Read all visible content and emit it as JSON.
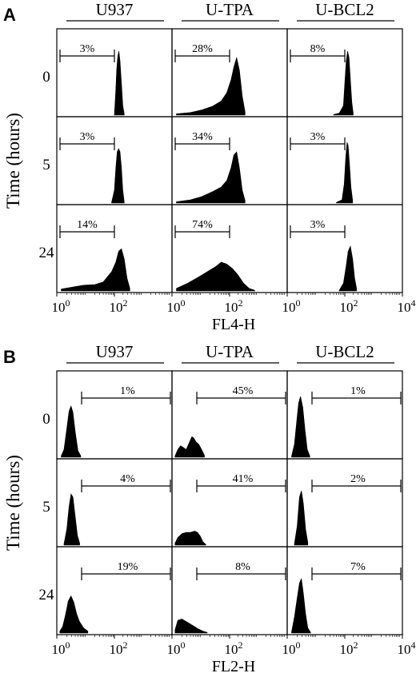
{
  "figure": {
    "panels": [
      {
        "letter": "A",
        "xlabel": "FL4-H",
        "ylabel": "Time (hours)",
        "columns": [
          "U937",
          "U-TPA",
          "U-BCL2"
        ],
        "rows": [
          "0",
          "5",
          "24"
        ],
        "tick_exponents": [
          "0",
          "2",
          "0",
          "2",
          "0",
          "2",
          "4"
        ],
        "gate": "left",
        "cells": [
          [
            {
              "pct": "3%",
              "hist": [
                [
                  2.0,
                  0
                ],
                [
                  2.05,
                  0.4
                ],
                [
                  2.08,
                  0.7
                ],
                [
                  2.12,
                  0.92
                ],
                [
                  2.16,
                  1.0
                ],
                [
                  2.2,
                  0.85
                ],
                [
                  2.25,
                  0.5
                ],
                [
                  2.3,
                  0.15
                ],
                [
                  2.35,
                  0.02
                ]
              ]
            },
            {
              "pct": "28%",
              "hist": [
                [
                  0.1,
                  0.02
                ],
                [
                  0.6,
                  0.04
                ],
                [
                  1.0,
                  0.08
                ],
                [
                  1.4,
                  0.14
                ],
                [
                  1.7,
                  0.22
                ],
                [
                  1.9,
                  0.35
                ],
                [
                  2.05,
                  0.55
                ],
                [
                  2.15,
                  0.75
                ],
                [
                  2.25,
                  0.9
                ],
                [
                  2.35,
                  0.7
                ],
                [
                  2.45,
                  0.3
                ],
                [
                  2.55,
                  0.05
                ]
              ]
            },
            {
              "pct": "8%",
              "hist": [
                [
                  1.6,
                  0.01
                ],
                [
                  1.8,
                  0.03
                ],
                [
                  1.95,
                  0.15
                ],
                [
                  2.0,
                  0.5
                ],
                [
                  2.05,
                  0.85
                ],
                [
                  2.1,
                  1.0
                ],
                [
                  2.15,
                  0.9
                ],
                [
                  2.2,
                  0.55
                ],
                [
                  2.25,
                  0.2
                ],
                [
                  2.3,
                  0.03
                ]
              ]
            }
          ],
          [
            {
              "pct": "3%",
              "hist": [
                [
                  1.9,
                  0.01
                ],
                [
                  2.0,
                  0.2
                ],
                [
                  2.05,
                  0.55
                ],
                [
                  2.1,
                  0.8
                ],
                [
                  2.15,
                  0.85
                ],
                [
                  2.2,
                  0.8
                ],
                [
                  2.25,
                  0.55
                ],
                [
                  2.3,
                  0.2
                ],
                [
                  2.35,
                  0.02
                ]
              ]
            },
            {
              "pct": "34%",
              "hist": [
                [
                  0.1,
                  0.02
                ],
                [
                  0.6,
                  0.05
                ],
                [
                  1.0,
                  0.1
                ],
                [
                  1.4,
                  0.18
                ],
                [
                  1.7,
                  0.25
                ],
                [
                  1.9,
                  0.35
                ],
                [
                  2.05,
                  0.55
                ],
                [
                  2.15,
                  0.75
                ],
                [
                  2.25,
                  0.8
                ],
                [
                  2.35,
                  0.55
                ],
                [
                  2.45,
                  0.2
                ],
                [
                  2.55,
                  0.04
                ]
              ]
            },
            {
              "pct": "3%",
              "hist": [
                [
                  1.7,
                  0.01
                ],
                [
                  1.9,
                  0.05
                ],
                [
                  1.98,
                  0.3
                ],
                [
                  2.03,
                  0.7
                ],
                [
                  2.08,
                  0.95
                ],
                [
                  2.12,
                  0.9
                ],
                [
                  2.17,
                  0.6
                ],
                [
                  2.22,
                  0.25
                ],
                [
                  2.28,
                  0.04
                ]
              ]
            }
          ],
          [
            {
              "pct": "14%",
              "hist": [
                [
                  0.1,
                  0.03
                ],
                [
                  0.5,
                  0.06
                ],
                [
                  0.9,
                  0.09
                ],
                [
                  1.3,
                  0.1
                ],
                [
                  1.6,
                  0.14
                ],
                [
                  1.9,
                  0.3
                ],
                [
                  2.05,
                  0.45
                ],
                [
                  2.15,
                  0.62
                ],
                [
                  2.25,
                  0.66
                ],
                [
                  2.35,
                  0.5
                ],
                [
                  2.45,
                  0.2
                ],
                [
                  2.55,
                  0.04
                ]
              ]
            },
            {
              "pct": "74%",
              "hist": [
                [
                  0.1,
                  0.04
                ],
                [
                  0.5,
                  0.12
                ],
                [
                  0.9,
                  0.22
                ],
                [
                  1.2,
                  0.3
                ],
                [
                  1.5,
                  0.38
                ],
                [
                  1.7,
                  0.45
                ],
                [
                  1.9,
                  0.42
                ],
                [
                  2.1,
                  0.35
                ],
                [
                  2.3,
                  0.25
                ],
                [
                  2.5,
                  0.12
                ],
                [
                  2.7,
                  0.04
                ],
                [
                  2.9,
                  0.01
                ]
              ]
            },
            {
              "pct": "3%",
              "hist": [
                [
                  1.8,
                  0.01
                ],
                [
                  1.95,
                  0.12
                ],
                [
                  2.05,
                  0.4
                ],
                [
                  2.12,
                  0.62
                ],
                [
                  2.2,
                  0.7
                ],
                [
                  2.28,
                  0.5
                ],
                [
                  2.35,
                  0.2
                ],
                [
                  2.42,
                  0.04
                ]
              ]
            }
          ]
        ]
      },
      {
        "letter": "B",
        "xlabel": "FL2-H",
        "ylabel": "Time (hours)",
        "columns": [
          "U937",
          "U-TPA",
          "U-BCL2"
        ],
        "rows": [
          "0",
          "5",
          "24"
        ],
        "tick_exponents": [
          "0",
          "2",
          "0",
          "2",
          "0",
          "2",
          "4"
        ],
        "gate": "right",
        "cells": [
          [
            {
              "pct": "1%",
              "hist": [
                [
                  0.1,
                  0.02
                ],
                [
                  0.2,
                  0.12
                ],
                [
                  0.3,
                  0.45
                ],
                [
                  0.38,
                  0.72
                ],
                [
                  0.45,
                  0.8
                ],
                [
                  0.52,
                  0.7
                ],
                [
                  0.6,
                  0.4
                ],
                [
                  0.7,
                  0.1
                ],
                [
                  0.8,
                  0.02
                ]
              ]
            },
            {
              "pct": "45%",
              "hist": [
                [
                  0.05,
                  0.02
                ],
                [
                  0.15,
                  0.12
                ],
                [
                  0.25,
                  0.18
                ],
                [
                  0.35,
                  0.15
                ],
                [
                  0.45,
                  0.12
                ],
                [
                  0.55,
                  0.22
                ],
                [
                  0.65,
                  0.32
                ],
                [
                  0.72,
                  0.3
                ],
                [
                  0.8,
                  0.24
                ],
                [
                  0.9,
                  0.2
                ],
                [
                  1.0,
                  0.12
                ],
                [
                  1.1,
                  0.03
                ]
              ]
            },
            {
              "pct": "1%",
              "hist": [
                [
                  0.1,
                  0.02
                ],
                [
                  0.2,
                  0.2
                ],
                [
                  0.28,
                  0.55
                ],
                [
                  0.35,
                  0.85
                ],
                [
                  0.42,
                  0.95
                ],
                [
                  0.5,
                  0.78
                ],
                [
                  0.58,
                  0.42
                ],
                [
                  0.66,
                  0.12
                ],
                [
                  0.75,
                  0.02
                ]
              ]
            }
          ],
          [
            {
              "pct": "4%",
              "hist": [
                [
                  0.2,
                  0.02
                ],
                [
                  0.3,
                  0.25
                ],
                [
                  0.38,
                  0.6
                ],
                [
                  0.45,
                  0.8
                ],
                [
                  0.52,
                  0.75
                ],
                [
                  0.6,
                  0.45
                ],
                [
                  0.68,
                  0.15
                ],
                [
                  0.76,
                  0.03
                ]
              ]
            },
            {
              "pct": "41%",
              "hist": [
                [
                  0.05,
                  0.03
                ],
                [
                  0.15,
                  0.12
                ],
                [
                  0.3,
                  0.18
                ],
                [
                  0.45,
                  0.2
                ],
                [
                  0.6,
                  0.2
                ],
                [
                  0.75,
                  0.22
                ],
                [
                  0.85,
                  0.2
                ],
                [
                  0.95,
                  0.14
                ],
                [
                  1.05,
                  0.05
                ],
                [
                  1.15,
                  0.01
                ]
              ]
            },
            {
              "pct": "2%",
              "hist": [
                [
                  0.2,
                  0.02
                ],
                [
                  0.3,
                  0.3
                ],
                [
                  0.38,
                  0.75
                ],
                [
                  0.45,
                  0.85
                ],
                [
                  0.52,
                  0.65
                ],
                [
                  0.6,
                  0.25
                ],
                [
                  0.68,
                  0.04
                ]
              ]
            }
          ],
          [
            {
              "pct": "19%",
              "hist": [
                [
                  0.05,
                  0.03
                ],
                [
                  0.15,
                  0.1
                ],
                [
                  0.25,
                  0.28
                ],
                [
                  0.35,
                  0.5
                ],
                [
                  0.45,
                  0.58
                ],
                [
                  0.55,
                  0.48
                ],
                [
                  0.65,
                  0.3
                ],
                [
                  0.75,
                  0.18
                ],
                [
                  0.9,
                  0.08
                ],
                [
                  1.05,
                  0.03
                ]
              ]
            },
            {
              "pct": "8%",
              "hist": [
                [
                  0.05,
                  0.05
                ],
                [
                  0.15,
                  0.2
                ],
                [
                  0.3,
                  0.22
                ],
                [
                  0.45,
                  0.18
                ],
                [
                  0.6,
                  0.14
                ],
                [
                  0.75,
                  0.1
                ],
                [
                  0.9,
                  0.06
                ],
                [
                  1.05,
                  0.03
                ],
                [
                  1.2,
                  0.01
                ]
              ]
            },
            {
              "pct": "7%",
              "hist": [
                [
                  0.1,
                  0.02
                ],
                [
                  0.2,
                  0.25
                ],
                [
                  0.3,
                  0.55
                ],
                [
                  0.38,
                  0.78
                ],
                [
                  0.45,
                  0.85
                ],
                [
                  0.52,
                  0.62
                ],
                [
                  0.6,
                  0.3
                ],
                [
                  0.68,
                  0.08
                ],
                [
                  0.78,
                  0.01
                ]
              ]
            }
          ]
        ]
      }
    ]
  },
  "chart_data": [
    {
      "type": "histogram-grid",
      "panel": "A",
      "xlabel": "FL4-H",
      "ylabel": "Time (hours)",
      "x_scale": "log",
      "xlim": [
        1,
        10000
      ],
      "columns": [
        "U937",
        "U-TPA",
        "U-BCL2"
      ],
      "rows": [
        "0",
        "5",
        "24"
      ],
      "gated_percent": [
        [
          "3%",
          "28%",
          "8%"
        ],
        [
          "3%",
          "34%",
          "3%"
        ],
        [
          "14%",
          "74%",
          "3%"
        ]
      ]
    },
    {
      "type": "histogram-grid",
      "panel": "B",
      "xlabel": "FL2-H",
      "ylabel": "Time (hours)",
      "x_scale": "log",
      "xlim": [
        1,
        10000
      ],
      "columns": [
        "U937",
        "U-TPA",
        "U-BCL2"
      ],
      "rows": [
        "0",
        "5",
        "24"
      ],
      "gated_percent": [
        [
          "1%",
          "45%",
          "1%"
        ],
        [
          "4%",
          "41%",
          "2%"
        ],
        [
          "19%",
          "8%",
          "7%"
        ]
      ]
    }
  ]
}
